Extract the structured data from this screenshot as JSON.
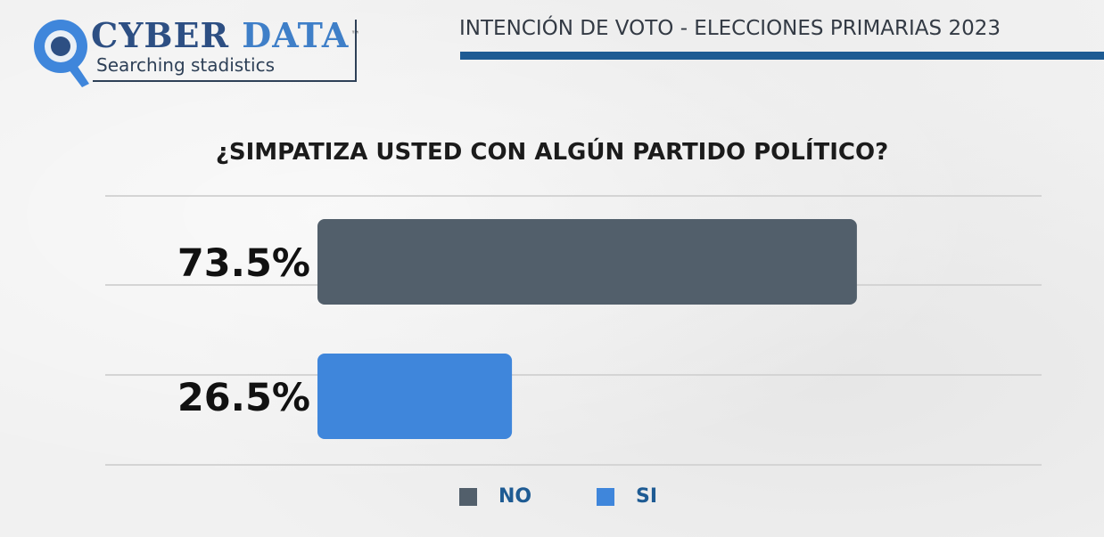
{
  "logo": {
    "word1": "CYBER",
    "word2": "DATA",
    "trademark": "™",
    "tagline": "Searching stadistics"
  },
  "header": {
    "title": "INTENCIÓN DE VOTO - ELECCIONES PRIMARIAS 2023"
  },
  "colors": {
    "no": "#525f6b",
    "si": "#3f86db",
    "accent": "#1e5b93",
    "gridline": "#d4d4d4"
  },
  "chart_data": {
    "type": "bar",
    "orientation": "horizontal",
    "title": "¿SIMPATIZA USTED CON ALGÚN PARTIDO POLÍTICO?",
    "series": [
      {
        "name": "NO",
        "value": 73.5,
        "label": "73.5%"
      },
      {
        "name": "SI",
        "value": 26.5,
        "label": "26.5%"
      }
    ],
    "unit": "%",
    "xlim": [
      0,
      100
    ],
    "grid": true,
    "legend_position": "bottom"
  }
}
